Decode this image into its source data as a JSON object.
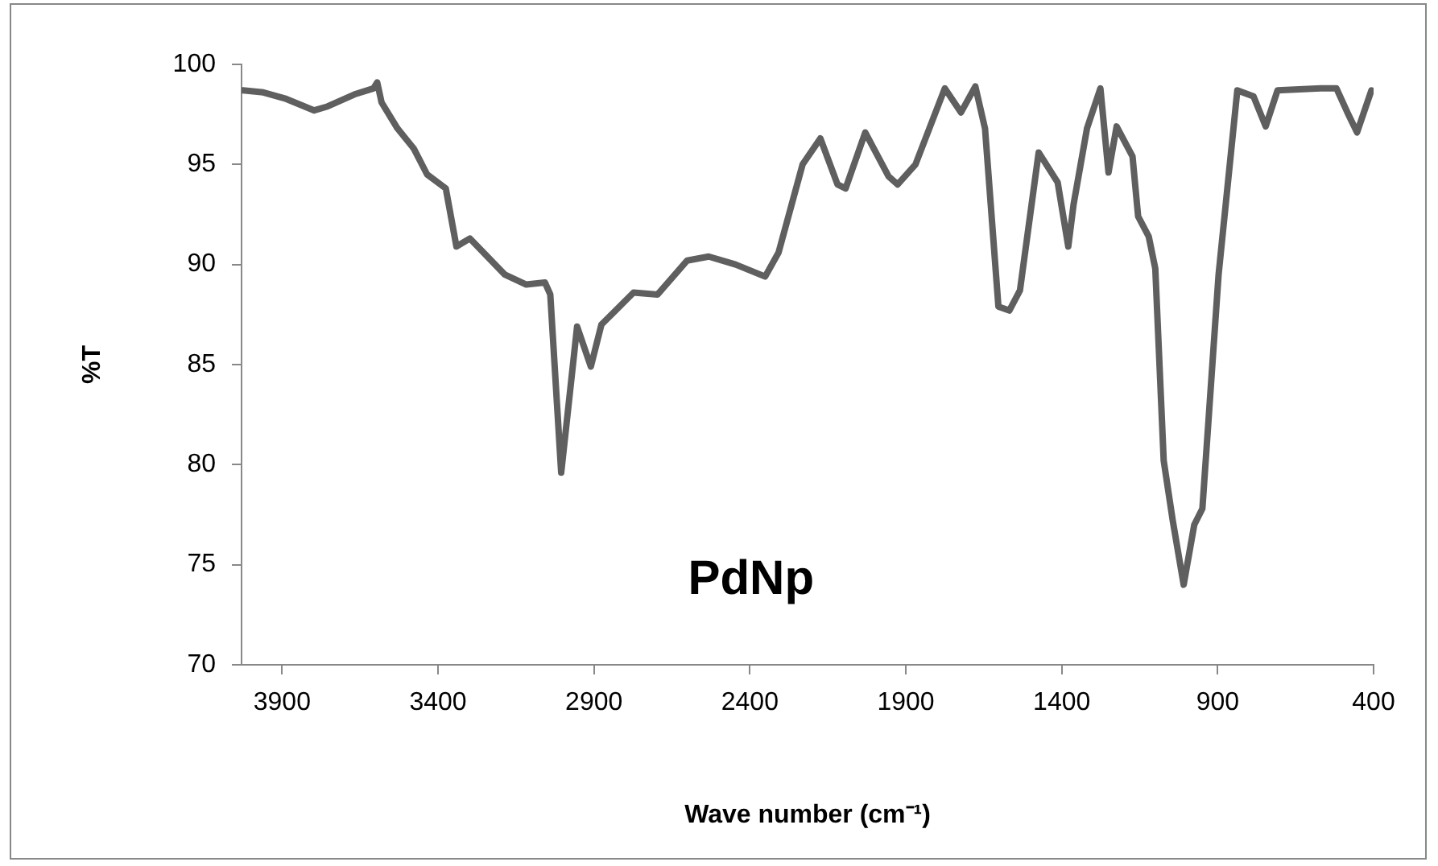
{
  "chart_data": {
    "type": "line",
    "xlabel": "Wave number (cm⁻¹)",
    "ylabel": "%T",
    "annotations": [
      "PdNp"
    ],
    "xlim": [
      4030,
      400
    ],
    "xticks": [
      3900,
      3400,
      2900,
      2400,
      1900,
      1400,
      900,
      400
    ],
    "ylim": [
      70,
      100
    ],
    "yticks": [
      70,
      75,
      80,
      85,
      90,
      95,
      100
    ],
    "grid": false,
    "legend": false,
    "marker": "none",
    "line_style": "solid",
    "x": [
      4025,
      3960,
      3891,
      3797,
      3754,
      3668,
      3607,
      3595,
      3581,
      3530,
      3478,
      3435,
      3375,
      3341,
      3298,
      3186,
      3117,
      3057,
      3040,
      3005,
      2954,
      2910,
      2876,
      2773,
      2696,
      2601,
      2532,
      2446,
      2351,
      2308,
      2231,
      2174,
      2119,
      2093,
      2030,
      1955,
      1926,
      1869,
      1775,
      1723,
      1677,
      1646,
      1603,
      1568,
      1534,
      1474,
      1413,
      1379,
      1362,
      1319,
      1276,
      1250,
      1224,
      1173,
      1155,
      1121,
      1100,
      1073,
      1044,
      1009,
      975,
      949,
      897,
      837,
      785,
      746,
      708,
      570,
      519,
      484,
      453,
      407
    ],
    "series": [
      {
        "color": "#5f5f5f",
        "values": [
          98.7,
          98.6,
          98.3,
          97.7,
          97.9,
          98.5,
          98.8,
          99.1,
          98.1,
          96.8,
          95.8,
          94.5,
          93.8,
          90.9,
          91.3,
          89.5,
          89.0,
          89.1,
          88.5,
          79.6,
          86.9,
          84.9,
          87.0,
          88.6,
          88.5,
          90.2,
          90.4,
          90.0,
          89.4,
          90.6,
          95.0,
          96.3,
          94.0,
          93.8,
          96.6,
          94.4,
          94.0,
          95.0,
          98.8,
          97.6,
          98.9,
          96.8,
          87.9,
          87.7,
          88.7,
          95.6,
          94.1,
          90.9,
          93.0,
          96.8,
          98.8,
          94.6,
          96.9,
          95.4,
          92.4,
          91.4,
          89.8,
          80.2,
          77.2,
          74.0,
          77.0,
          77.8,
          89.5,
          98.7,
          98.4,
          96.9,
          98.7,
          98.8,
          98.8,
          97.6,
          96.6,
          98.7
        ]
      }
    ]
  }
}
